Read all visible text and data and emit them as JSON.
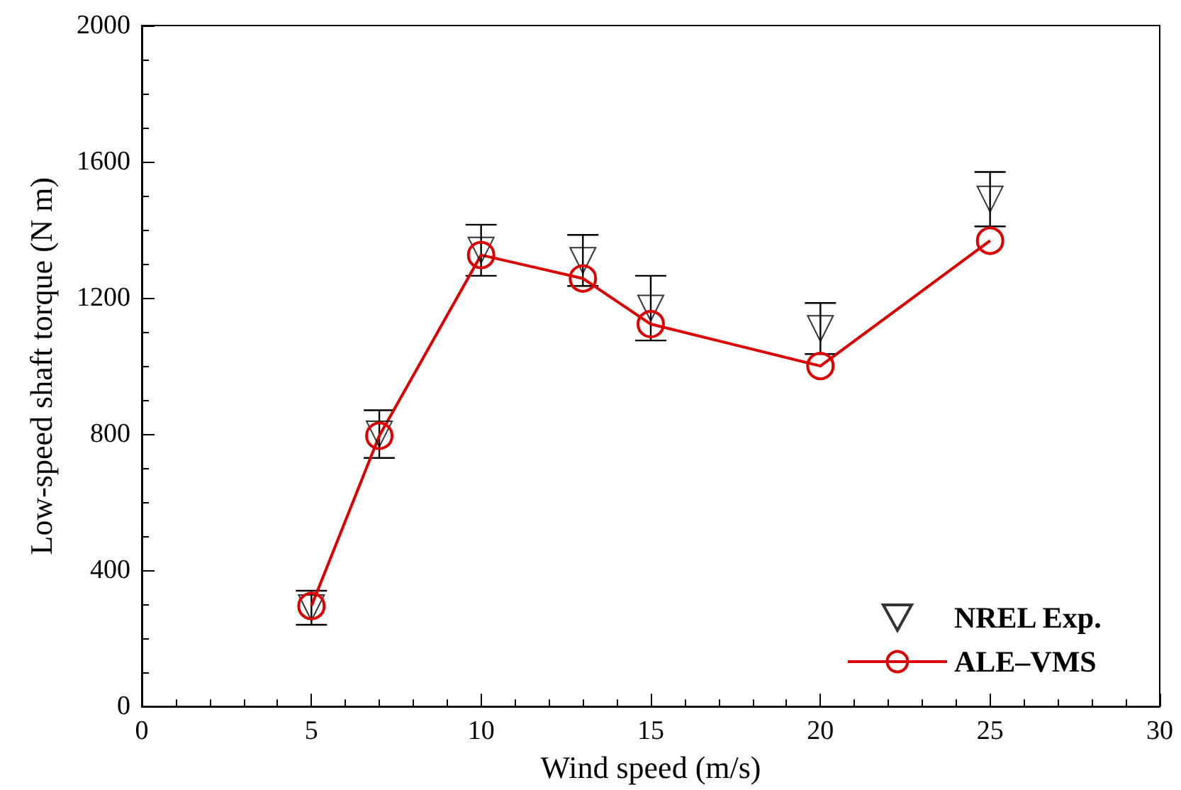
{
  "chart_data": {
    "type": "line",
    "xlabel": "Wind speed (m/s)",
    "ylabel": "Low-speed shaft torque (N m)",
    "x": [
      5,
      7,
      10,
      13,
      15,
      20,
      25
    ],
    "series": [
      {
        "name": "NREL Exp.",
        "type": "scatter",
        "color": "#000000",
        "marker": "triangle",
        "values": [
          290,
          800,
          1340,
          1310,
          1170,
          1110,
          1490
        ],
        "errors": [
          50,
          70,
          75,
          75,
          95,
          75,
          80
        ]
      },
      {
        "name": "ALE–VMS",
        "type": "line",
        "color": "#dd0000",
        "marker": "circle",
        "line_style": "solid",
        "values": [
          295,
          795,
          1326,
          1257,
          1123,
          1000,
          1368
        ]
      }
    ],
    "xlim": [
      0,
      30
    ],
    "xticks": [
      0,
      5,
      10,
      15,
      20,
      25,
      30
    ],
    "ylim": [
      0,
      2000
    ],
    "yticks": [
      0,
      400,
      800,
      1200,
      1600,
      2000
    ],
    "grid": false,
    "legend": "bottom right"
  }
}
